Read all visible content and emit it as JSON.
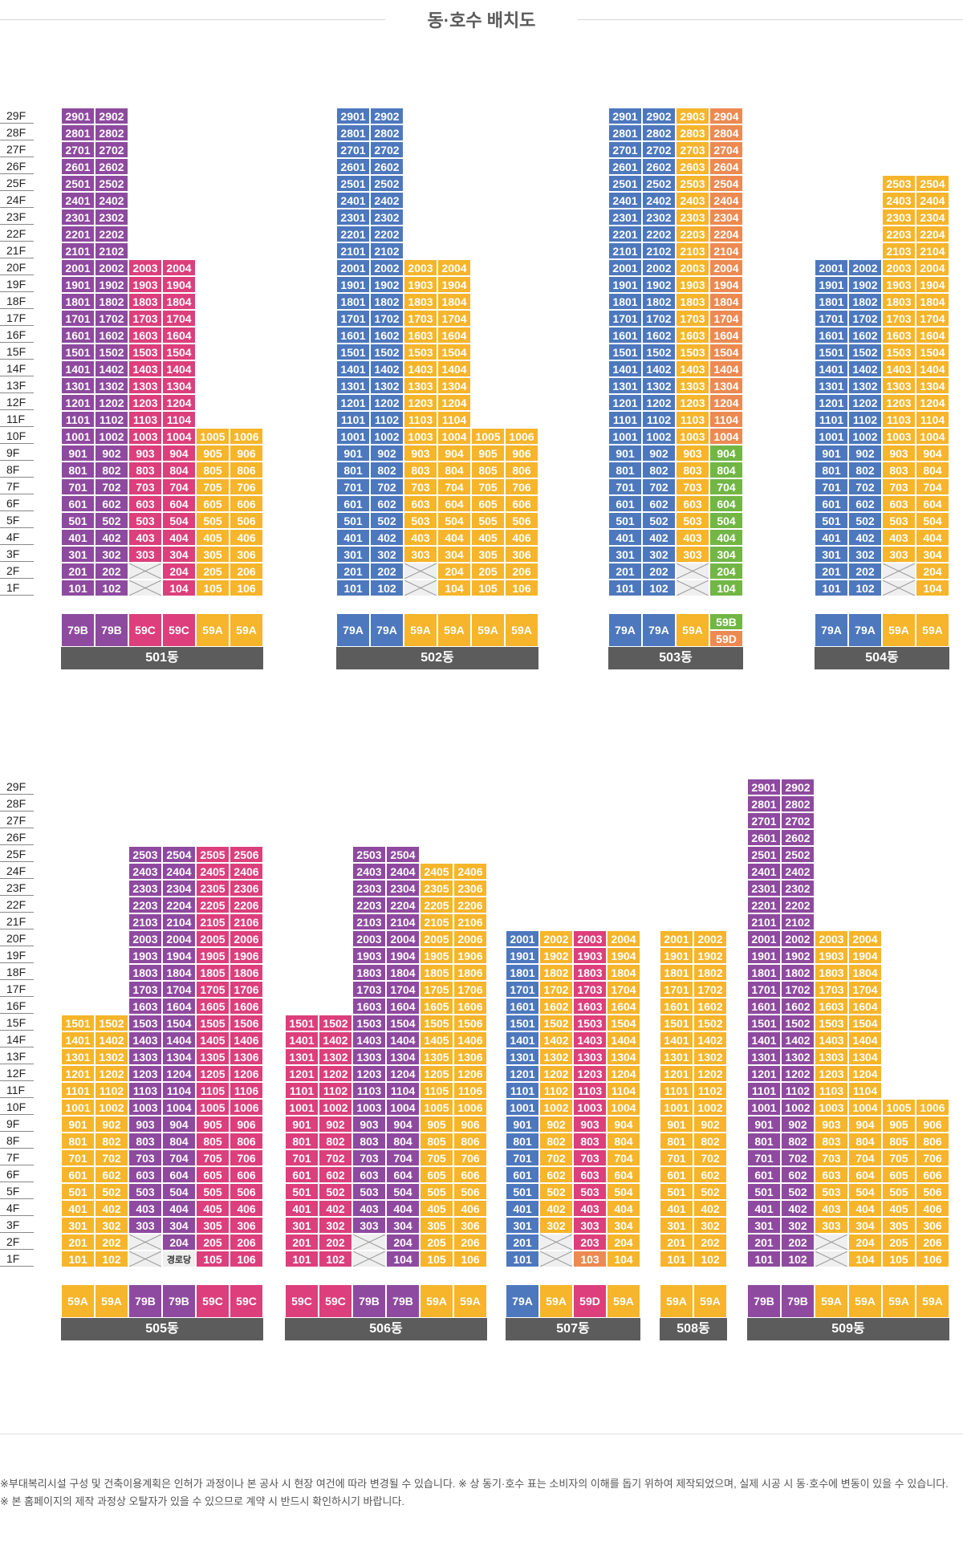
{
  "title": "동·호수 배치도",
  "colors": {
    "purple": "#8e4a9f",
    "magenta": "#dc3f7c",
    "yellow": "#f6b52a",
    "blue": "#4d78bd",
    "orange": "#ec8a52",
    "green": "#72b645"
  },
  "floor_labels": [
    "29F",
    "28F",
    "27F",
    "26F",
    "25F",
    "24F",
    "23F",
    "22F",
    "21F",
    "20F",
    "19F",
    "18F",
    "17F",
    "16F",
    "15F",
    "14F",
    "13F",
    "12F",
    "11F",
    "10F",
    "9F",
    "8F",
    "7F",
    "6F",
    "5F",
    "4F",
    "3F",
    "2F",
    "1F"
  ],
  "buildings": [
    {
      "name": "501동",
      "row": 0,
      "cols": [
        {
          "line": "01",
          "type": "79B",
          "color": "purple",
          "max": 29,
          "empty": []
        },
        {
          "line": "02",
          "type": "79B",
          "color": "purple",
          "max": 29,
          "empty": []
        },
        {
          "line": "03",
          "type": "59C",
          "color": "magenta",
          "max": 20,
          "empty": [
            1,
            2
          ]
        },
        {
          "line": "04",
          "type": "59C",
          "color": "magenta",
          "max": 20,
          "empty": []
        },
        {
          "line": "05",
          "type": "59A",
          "color": "yellow",
          "max": 10,
          "empty": []
        },
        {
          "line": "06",
          "type": "59A",
          "color": "yellow",
          "max": 10,
          "empty": []
        }
      ]
    },
    {
      "name": "502동",
      "row": 0,
      "cols": [
        {
          "line": "01",
          "type": "79A",
          "color": "blue",
          "max": 29,
          "empty": []
        },
        {
          "line": "02",
          "type": "79A",
          "color": "blue",
          "max": 29,
          "empty": []
        },
        {
          "line": "03",
          "type": "59A",
          "color": "yellow",
          "max": 20,
          "empty": [
            1,
            2
          ]
        },
        {
          "line": "04",
          "type": "59A",
          "color": "yellow",
          "max": 20,
          "empty": []
        },
        {
          "line": "05",
          "type": "59A",
          "color": "yellow",
          "max": 10,
          "empty": []
        },
        {
          "line": "06",
          "type": "59A",
          "color": "yellow",
          "max": 10,
          "empty": []
        }
      ]
    },
    {
      "name": "503동",
      "row": 0,
      "cols": [
        {
          "line": "01",
          "type": "79A",
          "color": "blue",
          "max": 29,
          "empty": []
        },
        {
          "line": "02",
          "type": "79A",
          "color": "blue",
          "max": 29,
          "empty": []
        },
        {
          "line": "03",
          "type": "59A",
          "color": "yellow",
          "max": 29,
          "empty": [
            1,
            2
          ]
        },
        {
          "line": "04",
          "type": "59B",
          "color": "orange",
          "max": 29,
          "lowColor": "green",
          "lowMax": 9,
          "empty": [],
          "types2": "59D"
        }
      ]
    },
    {
      "name": "504동",
      "row": 0,
      "cols": [
        {
          "line": "01",
          "type": "79A",
          "color": "blue",
          "max": 20,
          "empty": []
        },
        {
          "line": "02",
          "type": "79A",
          "color": "blue",
          "max": 20,
          "empty": []
        },
        {
          "line": "03",
          "type": "59A",
          "color": "yellow",
          "max": 25,
          "empty": [
            1,
            2
          ]
        },
        {
          "line": "04",
          "type": "59A",
          "color": "yellow",
          "max": 25,
          "empty": []
        }
      ]
    },
    {
      "name": "505동",
      "row": 1,
      "cols": [
        {
          "line": "01",
          "type": "59A",
          "color": "yellow",
          "max": 15,
          "empty": []
        },
        {
          "line": "02",
          "type": "59A",
          "color": "yellow",
          "max": 15,
          "empty": []
        },
        {
          "line": "03",
          "type": "79B",
          "color": "purple",
          "max": 25,
          "empty": [
            1,
            2
          ]
        },
        {
          "line": "04",
          "type": "79B",
          "color": "purple",
          "max": 25,
          "empty": [],
          "labels": {
            "1": "경로당"
          }
        },
        {
          "line": "05",
          "type": "59C",
          "color": "magenta",
          "max": 25,
          "empty": []
        },
        {
          "line": "06",
          "type": "59C",
          "color": "magenta",
          "max": 25,
          "empty": []
        }
      ]
    },
    {
      "name": "506동",
      "row": 1,
      "cols": [
        {
          "line": "01",
          "type": "59C",
          "color": "magenta",
          "max": 15,
          "empty": []
        },
        {
          "line": "02",
          "type": "59C",
          "color": "magenta",
          "max": 15,
          "empty": []
        },
        {
          "line": "03",
          "type": "79B",
          "color": "purple",
          "max": 25,
          "empty": [
            1,
            2
          ]
        },
        {
          "line": "04",
          "type": "79B",
          "color": "purple",
          "max": 25,
          "empty": []
        },
        {
          "line": "05",
          "type": "59A",
          "color": "yellow",
          "max": 24,
          "empty": []
        },
        {
          "line": "06",
          "type": "59A",
          "color": "yellow",
          "max": 24,
          "empty": []
        }
      ]
    },
    {
      "name": "507동",
      "row": 1,
      "cols": [
        {
          "line": "01",
          "type": "79A",
          "color": "blue",
          "max": 20,
          "empty": []
        },
        {
          "line": "02",
          "type": "59A",
          "color": "yellow",
          "max": 20,
          "empty": [
            1,
            2
          ]
        },
        {
          "line": "03",
          "type": "59D",
          "color": "magenta",
          "max": 20,
          "lowColor": "orange",
          "lowMax": 1,
          "empty": []
        },
        {
          "line": "04",
          "type": "59A",
          "color": "yellow",
          "max": 20,
          "empty": []
        }
      ]
    },
    {
      "name": "508동",
      "row": 1,
      "cols": [
        {
          "line": "01",
          "type": "59A",
          "color": "yellow",
          "max": 20,
          "empty": []
        },
        {
          "line": "02",
          "type": "59A",
          "color": "yellow",
          "max": 20,
          "empty": []
        }
      ]
    },
    {
      "name": "509동",
      "row": 1,
      "cols": [
        {
          "line": "01",
          "type": "79B",
          "color": "purple",
          "max": 29,
          "empty": []
        },
        {
          "line": "02",
          "type": "79B",
          "color": "purple",
          "max": 29,
          "empty": []
        },
        {
          "line": "03",
          "type": "59A",
          "color": "yellow",
          "max": 20,
          "empty": [
            1,
            2
          ]
        },
        {
          "line": "04",
          "type": "59A",
          "color": "yellow",
          "max": 20,
          "empty": []
        },
        {
          "line": "05",
          "type": "59A",
          "color": "yellow",
          "max": 10,
          "empty": []
        },
        {
          "line": "06",
          "type": "59A",
          "color": "yellow",
          "max": 10,
          "empty": []
        }
      ]
    }
  ],
  "footnote": "※부대복리시설 구성 및 건축이용계획은 인허가 과정이나 본 공사 시 현장 여건에 따라 변경될 수 있습니다. ※ 상 동기·호수 표는 소비자의 이해를 돕기 위하여 제작되었으며, 실제 시공 시 동·호수에 변동이 있을 수 있습니다. ※ 본 홈페이지의 제작 과정상 오탈자가 있을 수 있으므로 계약 시 반드시 확인하시기 바랍니다."
}
